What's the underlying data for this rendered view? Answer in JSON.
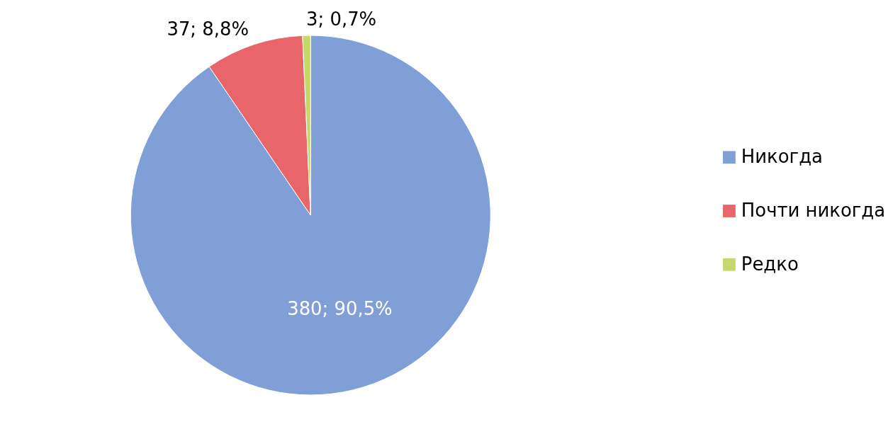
{
  "chart_data": {
    "type": "pie",
    "categories": [
      "Никогда",
      "Почти никогда",
      "Редко"
    ],
    "values": [
      380,
      37,
      3
    ],
    "colors": [
      "#7f9fd6",
      "#e8666a",
      "#c5d86a"
    ],
    "value_labels": [
      "380; 90,5%",
      "37; 8,8%",
      "3; 0,7%"
    ],
    "legend": "right"
  }
}
